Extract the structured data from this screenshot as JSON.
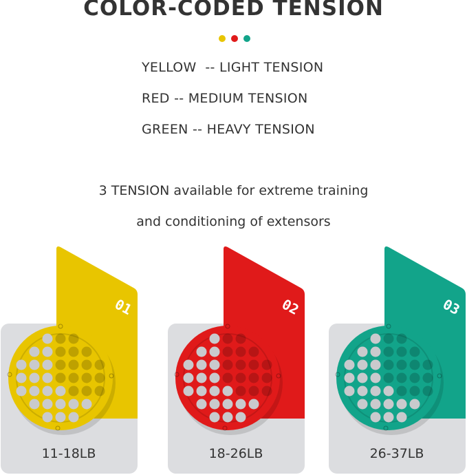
{
  "title": "COLOR-CODED TENSION",
  "colors": {
    "yellow": "#e8c500",
    "red": "#e01a1a",
    "green": "#12a48a"
  },
  "legend": [
    "YELLOW  -- LIGHT TENSION",
    "RED -- MEDIUM TENSION",
    "GREEN -- HEAVY TENSION"
  ],
  "subtitle": [
    "3 TENSION available for extreme training",
    "and conditioning of extensors"
  ],
  "products": [
    {
      "number": "01",
      "range": "11-18LB",
      "color": "#e8c500"
    },
    {
      "number": "02",
      "range": "18-26LB",
      "color": "#e01a1a"
    },
    {
      "number": "03",
      "range": "26-37LB",
      "color": "#12a48a"
    }
  ]
}
